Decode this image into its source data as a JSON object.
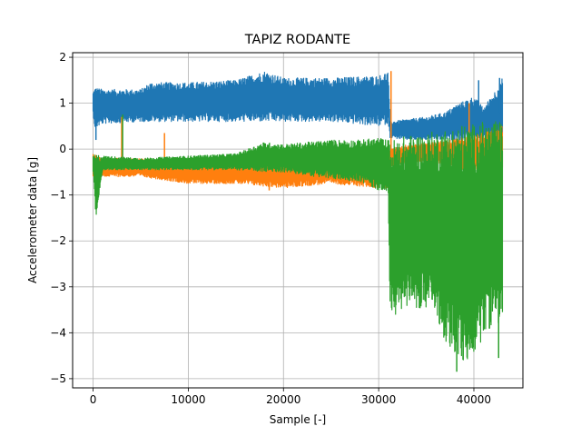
{
  "chart_data": {
    "type": "line",
    "title": "TAPIZ RODANTE",
    "xlabel": "Sample [-]",
    "ylabel": "Accelerometer data [g]",
    "xlim": [
      -2150,
      45150
    ],
    "ylim": [
      -5.2,
      2.1
    ],
    "xticks": [
      0,
      10000,
      20000,
      30000,
      40000
    ],
    "yticks": [
      -5,
      -4,
      -3,
      -2,
      -1,
      0,
      1,
      2
    ],
    "grid": true,
    "colors": [
      "#1f77b4",
      "#ff7f0e",
      "#2ca02c"
    ],
    "series": [
      {
        "color": "#1f77b4",
        "envelope": {
          "x": [
            0,
            200,
            1000,
            5000,
            6000,
            10000,
            15000,
            18000,
            20000,
            25000,
            30000,
            31000,
            31200,
            33000,
            35000,
            37000,
            38000,
            40000,
            41000,
            42000,
            43000
          ],
          "upper": [
            1.25,
            1.35,
            1.3,
            1.3,
            1.45,
            1.45,
            1.5,
            1.7,
            1.55,
            1.55,
            1.6,
            1.7,
            0.6,
            0.65,
            0.7,
            0.8,
            0.95,
            1.15,
            0.9,
            1.2,
            1.55
          ],
          "lower": [
            0.75,
            0.45,
            0.55,
            0.6,
            0.6,
            0.6,
            0.6,
            0.6,
            0.6,
            0.6,
            0.5,
            0.55,
            0.25,
            0.2,
            0.2,
            0.2,
            0.2,
            0.2,
            0.2,
            0.2,
            0.1
          ]
        },
        "spikes": [
          {
            "x": 300,
            "y": 0.2
          },
          {
            "x": 42700,
            "y": 1.55
          },
          {
            "x": 40500,
            "y": 1.5
          },
          {
            "x": 38800,
            "y": 0.95
          }
        ]
      },
      {
        "color": "#ff7f0e",
        "envelope": {
          "x": [
            0,
            500,
            1000,
            5000,
            10000,
            15000,
            20000,
            25000,
            30000,
            31000,
            31200,
            33000,
            36000,
            40000,
            43000
          ],
          "upper": [
            -0.1,
            -0.15,
            -0.2,
            -0.2,
            -0.3,
            -0.25,
            -0.15,
            -0.2,
            -0.2,
            -0.2,
            0.0,
            0.1,
            0.15,
            0.3,
            0.5
          ],
          "lower": [
            -0.6,
            -0.55,
            -0.6,
            -0.6,
            -0.75,
            -0.75,
            -0.85,
            -0.75,
            -0.85,
            -0.85,
            -0.4,
            -0.3,
            -0.3,
            -0.5,
            -0.6
          ]
        },
        "spikes": [
          {
            "x": 7500,
            "y": 0.35
          },
          {
            "x": 3000,
            "y": 0.7
          },
          {
            "x": 18500,
            "y": -0.9
          },
          {
            "x": 31300,
            "y": 1.7
          },
          {
            "x": 39500,
            "y": 1.0
          }
        ]
      },
      {
        "color": "#2ca02c",
        "envelope": {
          "x": [
            0,
            300,
            1000,
            5000,
            10000,
            15000,
            18000,
            20000,
            25000,
            28000,
            30000,
            31000,
            31200,
            33000,
            35000,
            36000,
            37000,
            38000,
            39000,
            40000,
            41000,
            42000,
            43000
          ],
          "upper": [
            -0.15,
            -0.1,
            -0.15,
            -0.2,
            -0.15,
            -0.1,
            0.15,
            0.1,
            0.2,
            0.2,
            0.25,
            0.2,
            0.2,
            0.3,
            0.35,
            0.4,
            0.45,
            0.5,
            0.55,
            0.55,
            0.6,
            0.6,
            0.6
          ],
          "lower": [
            -0.5,
            -1.55,
            -0.45,
            -0.45,
            -0.45,
            -0.45,
            -0.5,
            -0.5,
            -0.65,
            -0.7,
            -0.9,
            -0.9,
            -3.75,
            -3.4,
            -3.5,
            -3.6,
            -4.2,
            -4.5,
            -4.7,
            -4.5,
            -4.1,
            -3.8,
            -3.8
          ]
        },
        "spikes": [
          {
            "x": 3100,
            "y": 0.75
          },
          {
            "x": 38200,
            "y": -4.85
          },
          {
            "x": 42600,
            "y": -4.55
          }
        ]
      }
    ]
  }
}
